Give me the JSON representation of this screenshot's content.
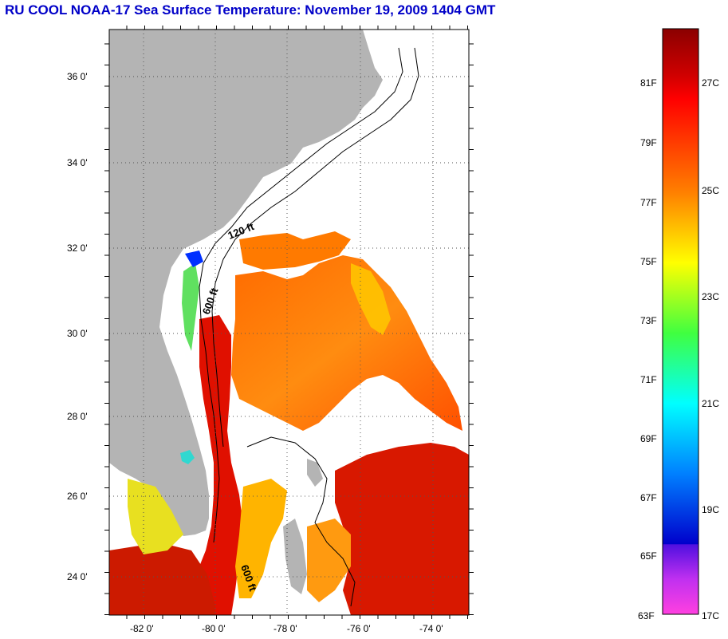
{
  "title": "RU COOL  NOAA-17  Sea Surface Temperature:  November 19, 2009 1404 GMT",
  "axes": {
    "latitude_labels": [
      "36 0'",
      "34 0'",
      "32 0'",
      "30 0'",
      "28 0'",
      "26 0'",
      "24 0'"
    ],
    "longitude_labels": [
      "-82 0'",
      "-80 0'",
      "-78 0'",
      "-76 0'",
      "-74 0'"
    ],
    "lat_range": [
      23,
      37
    ],
    "lon_range": [
      -83,
      -73
    ]
  },
  "isobaths": {
    "label_120": "120 ft",
    "label_600a": "600 ft",
    "label_600b": "600 ft"
  },
  "colorbar": {
    "fahrenheit": [
      "81F",
      "79F",
      "77F",
      "75F",
      "73F",
      "71F",
      "69F",
      "67F",
      "65F",
      "63F"
    ],
    "celsius": [
      "27C",
      "25C",
      "23C",
      "21C",
      "19C",
      "17C"
    ],
    "range_c": [
      17,
      28.5
    ],
    "colors": {
      "top": "#8b0000",
      "red": "#ff0000",
      "orange": "#ff8000",
      "yellow": "#ffff00",
      "green": "#40ff40",
      "cyan": "#00ffff",
      "blue": "#0040ff",
      "dark_blue": "#0000cc",
      "purple": "#8000ff",
      "magenta": "#ff40e0"
    }
  },
  "map_colors": {
    "land": "#b4b4b4",
    "no_data": "#ffffff",
    "grid": "#000000"
  }
}
